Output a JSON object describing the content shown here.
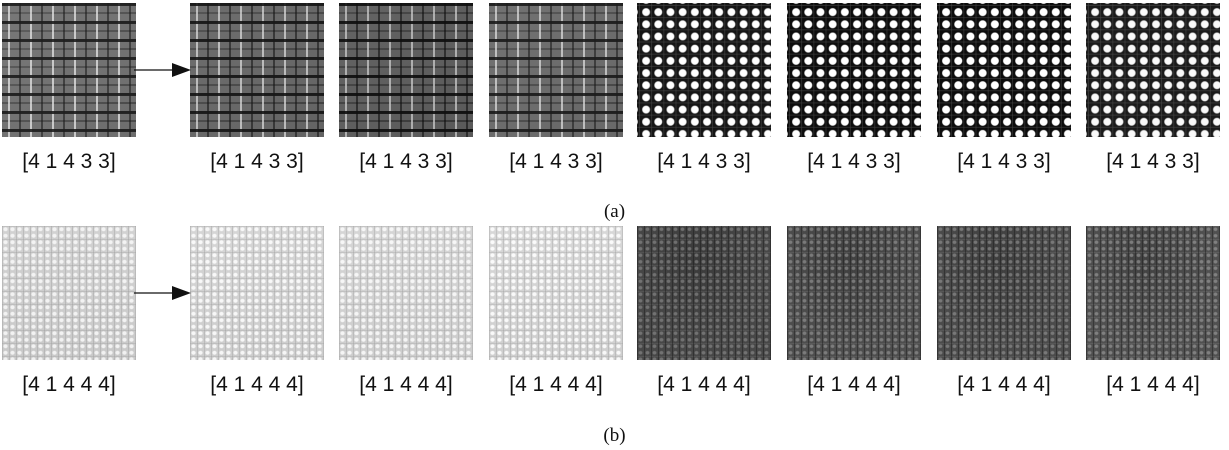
{
  "row_a": {
    "caption": "(a)",
    "labels": [
      "[4 1 4 3 3]",
      "[4 1 4 3 3]",
      "[4 1 4 3 3]",
      "[4 1 4 3 3]",
      "[4 1 4 3 3]",
      "[4 1 4 3 3]",
      "[4 1 4 3 3]",
      "[4 1 4 3 3]"
    ]
  },
  "row_b": {
    "caption": "(b)",
    "labels": [
      "[4 1 4 4 4]",
      "[4 1 4 4 4]",
      "[4 1 4 4 4]",
      "[4 1 4 4 4]",
      "[4 1 4 4 4]",
      "[4 1 4 4 4]",
      "[4 1 4 4 4]",
      "[4 1 4 4 4]"
    ]
  }
}
